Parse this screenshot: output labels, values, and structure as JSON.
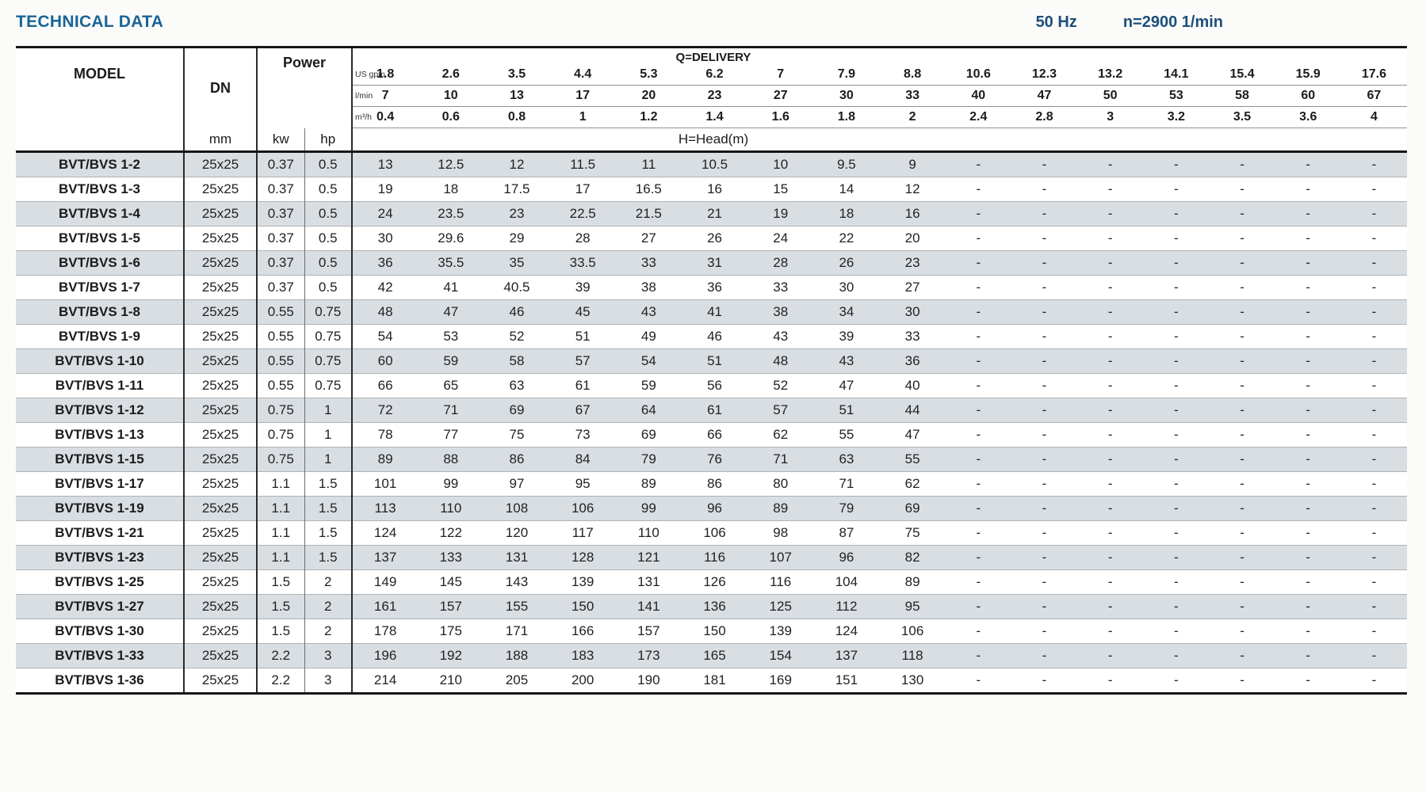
{
  "page": {
    "title": "TECHNICAL DATA",
    "frequency": "50 Hz",
    "speed": "n=2900 1/min"
  },
  "table": {
    "headers": {
      "model": "MODEL",
      "dn": "DN",
      "dn_unit": "mm",
      "power": "Power",
      "power_kw": "kw",
      "power_hp": "hp",
      "delivery": "Q=DELIVERY",
      "head": "H=Head(m)"
    },
    "unit_rows": [
      {
        "label": "US gpm",
        "values": [
          "1.8",
          "2.6",
          "3.5",
          "4.4",
          "5.3",
          "6.2",
          "7",
          "7.9",
          "8.8",
          "10.6",
          "12.3",
          "13.2",
          "14.1",
          "15.4",
          "15.9",
          "17.6"
        ]
      },
      {
        "label": "l/min",
        "values": [
          "7",
          "10",
          "13",
          "17",
          "20",
          "23",
          "27",
          "30",
          "33",
          "40",
          "47",
          "50",
          "53",
          "58",
          "60",
          "67"
        ]
      },
      {
        "label": "m³/h",
        "values": [
          "0.4",
          "0.6",
          "0.8",
          "1",
          "1.2",
          "1.4",
          "1.6",
          "1.8",
          "2",
          "2.4",
          "2.8",
          "3",
          "3.2",
          "3.5",
          "3.6",
          "4"
        ]
      }
    ],
    "rows": [
      {
        "model": "BVT/BVS 1-2",
        "dn": "25x25",
        "kw": "0.37",
        "hp": "0.5",
        "head": [
          "13",
          "12.5",
          "12",
          "11.5",
          "11",
          "10.5",
          "10",
          "9.5",
          "9",
          "-",
          "-",
          "-",
          "-",
          "-",
          "-",
          "-"
        ]
      },
      {
        "model": "BVT/BVS 1-3",
        "dn": "25x25",
        "kw": "0.37",
        "hp": "0.5",
        "head": [
          "19",
          "18",
          "17.5",
          "17",
          "16.5",
          "16",
          "15",
          "14",
          "12",
          "-",
          "-",
          "-",
          "-",
          "-",
          "-",
          "-"
        ]
      },
      {
        "model": "BVT/BVS 1-4",
        "dn": "25x25",
        "kw": "0.37",
        "hp": "0.5",
        "head": [
          "24",
          "23.5",
          "23",
          "22.5",
          "21.5",
          "21",
          "19",
          "18",
          "16",
          "-",
          "-",
          "-",
          "-",
          "-",
          "-",
          "-"
        ]
      },
      {
        "model": "BVT/BVS 1-5",
        "dn": "25x25",
        "kw": "0.37",
        "hp": "0.5",
        "head": [
          "30",
          "29.6",
          "29",
          "28",
          "27",
          "26",
          "24",
          "22",
          "20",
          "-",
          "-",
          "-",
          "-",
          "-",
          "-",
          "-"
        ]
      },
      {
        "model": "BVT/BVS 1-6",
        "dn": "25x25",
        "kw": "0.37",
        "hp": "0.5",
        "head": [
          "36",
          "35.5",
          "35",
          "33.5",
          "33",
          "31",
          "28",
          "26",
          "23",
          "-",
          "-",
          "-",
          "-",
          "-",
          "-",
          "-"
        ]
      },
      {
        "model": "BVT/BVS 1-7",
        "dn": "25x25",
        "kw": "0.37",
        "hp": "0.5",
        "head": [
          "42",
          "41",
          "40.5",
          "39",
          "38",
          "36",
          "33",
          "30",
          "27",
          "-",
          "-",
          "-",
          "-",
          "-",
          "-",
          "-"
        ]
      },
      {
        "model": "BVT/BVS 1-8",
        "dn": "25x25",
        "kw": "0.55",
        "hp": "0.75",
        "head": [
          "48",
          "47",
          "46",
          "45",
          "43",
          "41",
          "38",
          "34",
          "30",
          "-",
          "-",
          "-",
          "-",
          "-",
          "-",
          "-"
        ]
      },
      {
        "model": "BVT/BVS 1-9",
        "dn": "25x25",
        "kw": "0.55",
        "hp": "0.75",
        "head": [
          "54",
          "53",
          "52",
          "51",
          "49",
          "46",
          "43",
          "39",
          "33",
          "-",
          "-",
          "-",
          "-",
          "-",
          "-",
          "-"
        ]
      },
      {
        "model": "BVT/BVS 1-10",
        "dn": "25x25",
        "kw": "0.55",
        "hp": "0.75",
        "head": [
          "60",
          "59",
          "58",
          "57",
          "54",
          "51",
          "48",
          "43",
          "36",
          "-",
          "-",
          "-",
          "-",
          "-",
          "-",
          "-"
        ]
      },
      {
        "model": "BVT/BVS 1-11",
        "dn": "25x25",
        "kw": "0.55",
        "hp": "0.75",
        "head": [
          "66",
          "65",
          "63",
          "61",
          "59",
          "56",
          "52",
          "47",
          "40",
          "-",
          "-",
          "-",
          "-",
          "-",
          "-",
          "-"
        ]
      },
      {
        "model": "BVT/BVS 1-12",
        "dn": "25x25",
        "kw": "0.75",
        "hp": "1",
        "head": [
          "72",
          "71",
          "69",
          "67",
          "64",
          "61",
          "57",
          "51",
          "44",
          "-",
          "-",
          "-",
          "-",
          "-",
          "-",
          "-"
        ]
      },
      {
        "model": "BVT/BVS 1-13",
        "dn": "25x25",
        "kw": "0.75",
        "hp": "1",
        "head": [
          "78",
          "77",
          "75",
          "73",
          "69",
          "66",
          "62",
          "55",
          "47",
          "-",
          "-",
          "-",
          "-",
          "-",
          "-",
          "-"
        ]
      },
      {
        "model": "BVT/BVS 1-15",
        "dn": "25x25",
        "kw": "0.75",
        "hp": "1",
        "head": [
          "89",
          "88",
          "86",
          "84",
          "79",
          "76",
          "71",
          "63",
          "55",
          "-",
          "-",
          "-",
          "-",
          "-",
          "-",
          "-"
        ]
      },
      {
        "model": "BVT/BVS 1-17",
        "dn": "25x25",
        "kw": "1.1",
        "hp": "1.5",
        "head": [
          "101",
          "99",
          "97",
          "95",
          "89",
          "86",
          "80",
          "71",
          "62",
          "-",
          "-",
          "-",
          "-",
          "-",
          "-",
          "-"
        ]
      },
      {
        "model": "BVT/BVS 1-19",
        "dn": "25x25",
        "kw": "1.1",
        "hp": "1.5",
        "head": [
          "113",
          "110",
          "108",
          "106",
          "99",
          "96",
          "89",
          "79",
          "69",
          "-",
          "-",
          "-",
          "-",
          "-",
          "-",
          "-"
        ]
      },
      {
        "model": "BVT/BVS 1-21",
        "dn": "25x25",
        "kw": "1.1",
        "hp": "1.5",
        "head": [
          "124",
          "122",
          "120",
          "117",
          "110",
          "106",
          "98",
          "87",
          "75",
          "-",
          "-",
          "-",
          "-",
          "-",
          "-",
          "-"
        ]
      },
      {
        "model": "BVT/BVS 1-23",
        "dn": "25x25",
        "kw": "1.1",
        "hp": "1.5",
        "head": [
          "137",
          "133",
          "131",
          "128",
          "121",
          "116",
          "107",
          "96",
          "82",
          "-",
          "-",
          "-",
          "-",
          "-",
          "-",
          "-"
        ]
      },
      {
        "model": "BVT/BVS 1-25",
        "dn": "25x25",
        "kw": "1.5",
        "hp": "2",
        "head": [
          "149",
          "145",
          "143",
          "139",
          "131",
          "126",
          "116",
          "104",
          "89",
          "-",
          "-",
          "-",
          "-",
          "-",
          "-",
          "-"
        ]
      },
      {
        "model": "BVT/BVS 1-27",
        "dn": "25x25",
        "kw": "1.5",
        "hp": "2",
        "head": [
          "161",
          "157",
          "155",
          "150",
          "141",
          "136",
          "125",
          "112",
          "95",
          "-",
          "-",
          "-",
          "-",
          "-",
          "-",
          "-"
        ]
      },
      {
        "model": "BVT/BVS 1-30",
        "dn": "25x25",
        "kw": "1.5",
        "hp": "2",
        "head": [
          "178",
          "175",
          "171",
          "166",
          "157",
          "150",
          "139",
          "124",
          "106",
          "-",
          "-",
          "-",
          "-",
          "-",
          "-",
          "-"
        ]
      },
      {
        "model": "BVT/BVS 1-33",
        "dn": "25x25",
        "kw": "2.2",
        "hp": "3",
        "head": [
          "196",
          "192",
          "188",
          "183",
          "173",
          "165",
          "154",
          "137",
          "118",
          "-",
          "-",
          "-",
          "-",
          "-",
          "-",
          "-"
        ]
      },
      {
        "model": "BVT/BVS 1-36",
        "dn": "25x25",
        "kw": "2.2",
        "hp": "3",
        "head": [
          "214",
          "210",
          "205",
          "200",
          "190",
          "181",
          "169",
          "151",
          "130",
          "-",
          "-",
          "-",
          "-",
          "-",
          "-",
          "-"
        ]
      }
    ]
  }
}
